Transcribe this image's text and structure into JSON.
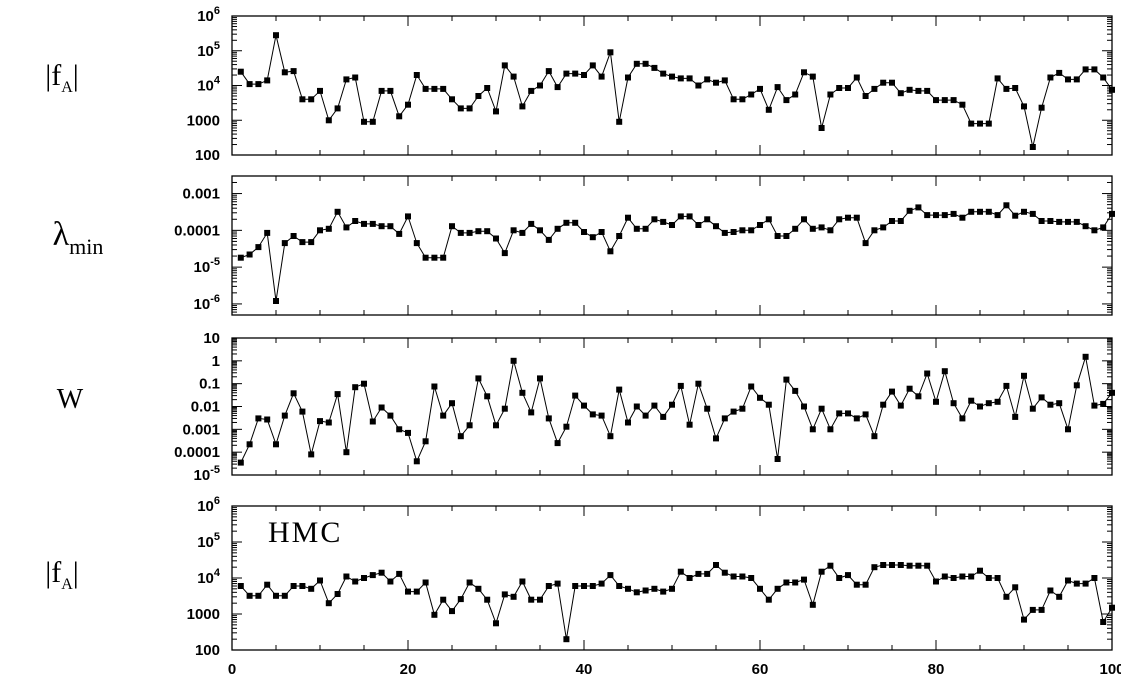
{
  "chart_data": [
    {
      "type": "line",
      "ylabel": "|f_A|",
      "yscale": "log",
      "ylim": [
        100,
        1000000
      ],
      "xlim": [
        0,
        100
      ],
      "yticks": [
        {
          "value": 1000000,
          "label": "10",
          "sup": "6"
        },
        {
          "value": 100000,
          "label": "10",
          "sup": "5"
        },
        {
          "value": 10000,
          "label": "10",
          "sup": "4"
        },
        {
          "value": 1000,
          "label": "1000",
          "sup": ""
        },
        {
          "value": 100,
          "label": "100",
          "sup": ""
        }
      ],
      "annotation": "",
      "series": [
        {
          "values": [
            25000,
            11000,
            11000,
            14000,
            280000,
            24000,
            26000,
            4000,
            4000,
            7000,
            1000,
            2200,
            15000,
            17000,
            900,
            900,
            7000,
            7000,
            1300,
            2800,
            20000,
            8000,
            8000,
            8000,
            4000,
            2200,
            2200,
            5000,
            8500,
            1800,
            38000,
            18000,
            2500,
            7000,
            10000,
            26000,
            9000,
            22000,
            22000,
            20000,
            38000,
            18000,
            90000,
            900,
            17000,
            42000,
            42000,
            32000,
            22000,
            18000,
            16000,
            16000,
            10000,
            15000,
            12000,
            14000,
            4000,
            4000,
            5500,
            8000,
            2000,
            9000,
            3800,
            5500,
            24000,
            18000,
            600,
            5500,
            8500,
            8500,
            17000,
            5000,
            8000,
            12000,
            12000,
            6000,
            7500,
            7000,
            7000,
            3800,
            3800,
            3800,
            2800,
            800,
            800,
            800,
            16000,
            8000,
            8500,
            2500,
            170,
            2300,
            17000,
            23000,
            15000,
            15000,
            29000,
            29000,
            17000,
            7500
          ]
        }
      ]
    },
    {
      "type": "line",
      "ylabel": "λmin",
      "yscale": "log",
      "ylim": [
        5e-07,
        0.003
      ],
      "xlim": [
        0,
        100
      ],
      "yticks": [
        {
          "value": 0.001,
          "label": "0.001",
          "sup": ""
        },
        {
          "value": 0.0001,
          "label": "0.0001",
          "sup": ""
        },
        {
          "value": 1e-05,
          "label": "10",
          "sup": "-5"
        },
        {
          "value": 1e-06,
          "label": "10",
          "sup": "-6"
        }
      ],
      "annotation": "",
      "series": [
        {
          "values": [
            1.8e-05,
            2.2e-05,
            3.5e-05,
            8.5e-05,
            1.2e-06,
            4.5e-05,
            7e-05,
            4.8e-05,
            4.8e-05,
            0.0001,
            0.00011,
            0.00032,
            0.00012,
            0.00018,
            0.00015,
            0.00015,
            0.00013,
            0.00013,
            8e-05,
            0.00024,
            4.5e-05,
            1.8e-05,
            1.8e-05,
            1.8e-05,
            0.00013,
            8.5e-05,
            8.5e-05,
            9.5e-05,
            9.5e-05,
            6e-05,
            2.4e-05,
            0.0001,
            8.5e-05,
            0.00015,
            0.0001,
            5.5e-05,
            0.00011,
            0.00016,
            0.00016,
            9e-05,
            6.5e-05,
            9e-05,
            2.7e-05,
            7e-05,
            0.00022,
            0.00011,
            0.00011,
            0.0002,
            0.00017,
            0.00014,
            0.00024,
            0.00024,
            0.00014,
            0.0002,
            0.00013,
            8.5e-05,
            9e-05,
            0.0001,
            0.0001,
            0.00014,
            0.0002,
            7e-05,
            7e-05,
            0.00011,
            0.0002,
            0.00011,
            0.00012,
            0.0001,
            0.0002,
            0.00022,
            0.00022,
            4.5e-05,
            0.0001,
            0.00012,
            0.00018,
            0.00018,
            0.00034,
            0.00042,
            0.00026,
            0.00026,
            0.00026,
            0.00028,
            0.00022,
            0.00032,
            0.00032,
            0.00032,
            0.00026,
            0.00048,
            0.00025,
            0.00032,
            0.00028,
            0.00018,
            0.00018,
            0.00017,
            0.00017,
            0.00017,
            0.00013,
            0.0001,
            0.00012,
            0.00028
          ]
        }
      ]
    },
    {
      "type": "line",
      "ylabel": "W",
      "yscale": "log",
      "ylim": [
        1e-05,
        10
      ],
      "xlim": [
        0,
        100
      ],
      "yticks": [
        {
          "value": 10,
          "label": "10",
          "sup": ""
        },
        {
          "value": 1,
          "label": "1",
          "sup": ""
        },
        {
          "value": 0.1,
          "label": "0.1",
          "sup": ""
        },
        {
          "value": 0.01,
          "label": "0.01",
          "sup": ""
        },
        {
          "value": 0.001,
          "label": "0.001",
          "sup": ""
        },
        {
          "value": 0.0001,
          "label": "0.0001",
          "sup": ""
        },
        {
          "value": 1e-05,
          "label": "10",
          "sup": "-5"
        }
      ],
      "annotation": "",
      "series": [
        {
          "values": [
            3.5e-05,
            0.00022,
            0.003,
            0.0027,
            0.00022,
            0.004,
            0.038,
            0.006,
            8e-05,
            0.0023,
            0.002,
            0.035,
            0.0001,
            0.07,
            0.1,
            0.0022,
            0.009,
            0.004,
            0.001,
            0.0007,
            4e-05,
            0.0003,
            0.075,
            0.004,
            0.014,
            0.0005,
            0.0015,
            0.17,
            0.028,
            0.0015,
            0.008,
            1.0,
            0.04,
            0.0055,
            0.17,
            0.003,
            0.00025,
            0.0013,
            0.03,
            0.011,
            0.0045,
            0.004,
            0.0005,
            0.055,
            0.002,
            0.01,
            0.004,
            0.011,
            0.0035,
            0.012,
            0.08,
            0.0016,
            0.1,
            0.008,
            0.0004,
            0.003,
            0.006,
            0.008,
            0.075,
            0.024,
            0.012,
            5e-05,
            0.15,
            0.048,
            0.01,
            0.001,
            0.008,
            0.001,
            0.005,
            0.005,
            0.003,
            0.0045,
            0.0005,
            0.012,
            0.045,
            0.011,
            0.06,
            0.028,
            0.28,
            0.016,
            0.35,
            0.014,
            0.003,
            0.018,
            0.01,
            0.014,
            0.016,
            0.08,
            0.0035,
            0.22,
            0.008,
            0.025,
            0.012,
            0.014,
            0.001,
            0.085,
            1.5,
            0.011,
            0.013,
            0.04
          ]
        }
      ]
    },
    {
      "type": "line",
      "ylabel": "|f_A|",
      "yscale": "log",
      "ylim": [
        100,
        1000000
      ],
      "xlim": [
        0,
        100
      ],
      "yticks": [
        {
          "value": 1000000,
          "label": "10",
          "sup": "6"
        },
        {
          "value": 100000,
          "label": "10",
          "sup": "5"
        },
        {
          "value": 10000,
          "label": "10",
          "sup": "4"
        },
        {
          "value": 1000,
          "label": "1000",
          "sup": ""
        },
        {
          "value": 100,
          "label": "100",
          "sup": ""
        }
      ],
      "xticks": [
        {
          "value": 0,
          "label": "0"
        },
        {
          "value": 20,
          "label": "20"
        },
        {
          "value": 40,
          "label": "40"
        },
        {
          "value": 60,
          "label": "60"
        },
        {
          "value": 80,
          "label": "80"
        },
        {
          "value": 100,
          "label": "100"
        }
      ],
      "annotation": "HMC",
      "series": [
        {
          "values": [
            6000,
            3200,
            3200,
            6500,
            3200,
            3200,
            6000,
            6000,
            5000,
            8500,
            2000,
            3600,
            11000,
            8000,
            10000,
            12000,
            14000,
            8000,
            13000,
            4200,
            4200,
            7500,
            950,
            2500,
            1200,
            2600,
            7500,
            5000,
            2500,
            550,
            3500,
            3000,
            8000,
            2500,
            2500,
            6000,
            7000,
            200,
            6000,
            6000,
            6000,
            7000,
            12000,
            6000,
            5000,
            4000,
            4500,
            5000,
            4200,
            5000,
            15000,
            10000,
            13000,
            13000,
            23000,
            14000,
            11000,
            11000,
            10000,
            5000,
            2500,
            5000,
            7500,
            7500,
            9000,
            1800,
            15000,
            22000,
            10000,
            12000,
            6500,
            6500,
            20000,
            23000,
            23000,
            23000,
            22000,
            22000,
            22000,
            8000,
            11000,
            10000,
            11000,
            11000,
            16000,
            10000,
            10000,
            3000,
            5500,
            700,
            1300,
            1300,
            4500,
            3000,
            8500,
            7000,
            7000,
            10000,
            600,
            1500
          ]
        }
      ]
    }
  ]
}
